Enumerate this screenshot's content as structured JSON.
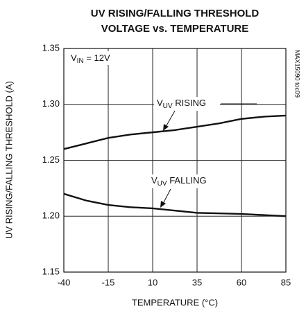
{
  "chart_data": {
    "type": "line",
    "title": [
      "UV RISING/FALLING THRESHOLD",
      "VOLTAGE vs. TEMPERATURE"
    ],
    "x_label": "TEMPERATURE (°C)",
    "y_label": "UV RISING/FALLING THRESHOLD (A)",
    "side_note": "MAX15090 toc09",
    "annotations": [
      [
        "V",
        "IN",
        " = 12V"
      ],
      [
        "V",
        "UV",
        " RISING"
      ],
      [
        "V",
        "UV",
        " FALLING"
      ]
    ],
    "x": [
      -40,
      -27.5,
      -15,
      -2.5,
      10,
      22.5,
      35,
      47.5,
      60,
      72.5,
      85
    ],
    "series": [
      {
        "name": "RISING",
        "color": "#111111",
        "values": [
          1.26,
          1.265,
          1.27,
          1.273,
          1.275,
          1.277,
          1.28,
          1.283,
          1.287,
          1.289,
          1.29
        ]
      },
      {
        "name": "FALLING",
        "color": "#111111",
        "values": [
          1.22,
          1.214,
          1.21,
          1.208,
          1.207,
          1.205,
          1.203,
          1.2025,
          1.202,
          1.201,
          1.2
        ]
      }
    ],
    "xlim": [
      -40,
      85
    ],
    "xticks": [
      -40,
      -15,
      10,
      35,
      60,
      85
    ],
    "ylim": [
      1.15,
      1.35
    ],
    "yticks": [
      1.15,
      1.2,
      1.25,
      1.3,
      1.35
    ],
    "ytick_labels": [
      "1.15",
      "1.20",
      "1.25",
      "1.30",
      "1.35"
    ],
    "grid": true
  }
}
